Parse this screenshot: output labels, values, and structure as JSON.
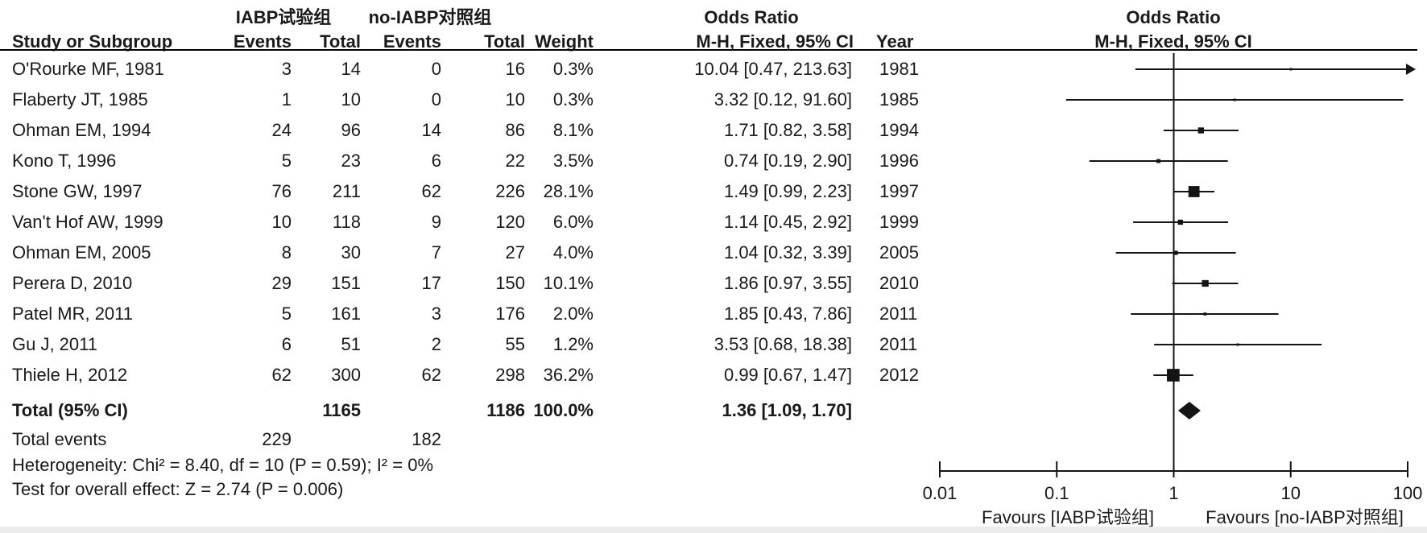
{
  "chart_data": {
    "type": "forest_plot",
    "title": "Odds Ratio",
    "method": "M-H, Fixed, 95% CI",
    "group1_label": "IABP试验组",
    "group2_label": "no-IABP对照组",
    "col_labels": {
      "study": "Study or Subgroup",
      "events": "Events",
      "total": "Total",
      "weight": "Weight",
      "mh": "M-H, Fixed, 95% CI",
      "year": "Year"
    },
    "studies": [
      {
        "study": "O'Rourke MF, 1981",
        "e1": "3",
        "t1": "14",
        "e2": "0",
        "t2": "16",
        "weight": "0.3%",
        "or_ci": "10.04 [0.47, 213.63]",
        "year": "1981",
        "or": 10.04,
        "low": 0.47,
        "high": 213.63,
        "w": 0.3
      },
      {
        "study": "Flaberty JT, 1985",
        "e1": "1",
        "t1": "10",
        "e2": "0",
        "t2": "10",
        "weight": "0.3%",
        "or_ci": "3.32 [0.12, 91.60]",
        "year": "1985",
        "or": 3.32,
        "low": 0.12,
        "high": 91.6,
        "w": 0.3
      },
      {
        "study": "Ohman EM, 1994",
        "e1": "24",
        "t1": "96",
        "e2": "14",
        "t2": "86",
        "weight": "8.1%",
        "or_ci": "1.71 [0.82, 3.58]",
        "year": "1994",
        "or": 1.71,
        "low": 0.82,
        "high": 3.58,
        "w": 8.1
      },
      {
        "study": "Kono T, 1996",
        "e1": "5",
        "t1": "23",
        "e2": "6",
        "t2": "22",
        "weight": "3.5%",
        "or_ci": "0.74 [0.19, 2.90]",
        "year": "1996",
        "or": 0.74,
        "low": 0.19,
        "high": 2.9,
        "w": 3.5
      },
      {
        "study": "Stone GW, 1997",
        "e1": "76",
        "t1": "211",
        "e2": "62",
        "t2": "226",
        "weight": "28.1%",
        "or_ci": "1.49 [0.99, 2.23]",
        "year": "1997",
        "or": 1.49,
        "low": 0.99,
        "high": 2.23,
        "w": 28.1
      },
      {
        "study": "Van't Hof AW, 1999",
        "e1": "10",
        "t1": "118",
        "e2": "9",
        "t2": "120",
        "weight": "6.0%",
        "or_ci": "1.14 [0.45, 2.92]",
        "year": "1999",
        "or": 1.14,
        "low": 0.45,
        "high": 2.92,
        "w": 6.0
      },
      {
        "study": "Ohman EM, 2005",
        "e1": "8",
        "t1": "30",
        "e2": "7",
        "t2": "27",
        "weight": "4.0%",
        "or_ci": "1.04 [0.32, 3.39]",
        "year": "2005",
        "or": 1.04,
        "low": 0.32,
        "high": 3.39,
        "w": 4.0
      },
      {
        "study": "Perera D, 2010",
        "e1": "29",
        "t1": "151",
        "e2": "17",
        "t2": "150",
        "weight": "10.1%",
        "or_ci": "1.86 [0.97, 3.55]",
        "year": "2010",
        "or": 1.86,
        "low": 0.97,
        "high": 3.55,
        "w": 10.1
      },
      {
        "study": "Patel MR, 2011",
        "e1": "5",
        "t1": "161",
        "e2": "3",
        "t2": "176",
        "weight": "2.0%",
        "or_ci": "1.85 [0.43, 7.86]",
        "year": "2011",
        "or": 1.85,
        "low": 0.43,
        "high": 7.86,
        "w": 2.0
      },
      {
        "study": "Gu J, 2011",
        "e1": "6",
        "t1": "51",
        "e2": "2",
        "t2": "55",
        "weight": "1.2%",
        "or_ci": "3.53 [0.68, 18.38]",
        "year": "2011",
        "or": 3.53,
        "low": 0.68,
        "high": 18.38,
        "w": 1.2
      },
      {
        "study": "Thiele H, 2012",
        "e1": "62",
        "t1": "300",
        "e2": "62",
        "t2": "298",
        "weight": "36.2%",
        "or_ci": "0.99 [0.67, 1.47]",
        "year": "2012",
        "or": 0.99,
        "low": 0.67,
        "high": 1.47,
        "w": 36.2
      }
    ],
    "total": {
      "label": "Total (95% CI)",
      "t1": "1165",
      "t2": "1186",
      "weight": "100.0%",
      "or_ci": "1.36 [1.09, 1.70]",
      "or": 1.36,
      "low": 1.09,
      "high": 1.7
    },
    "total_events": {
      "label": "Total events",
      "e1": "229",
      "e2": "182"
    },
    "heterogeneity": "Heterogeneity: Chi² = 8.40, df = 10 (P = 0.59); I² = 0%",
    "overall_effect": "Test for overall effect: Z = 2.74 (P = 0.006)",
    "axis": {
      "scale": "log",
      "ticks": [
        0.01,
        0.1,
        1,
        10,
        100
      ],
      "tick_labels": [
        "0.01",
        "0.1",
        "1",
        "10",
        "100"
      ],
      "xlim": [
        0.01,
        100
      ]
    },
    "favours_left": "Favours [IABP试验组]",
    "favours_right": "Favours [no-IABP对照组]",
    "marker_color": "#141414"
  }
}
